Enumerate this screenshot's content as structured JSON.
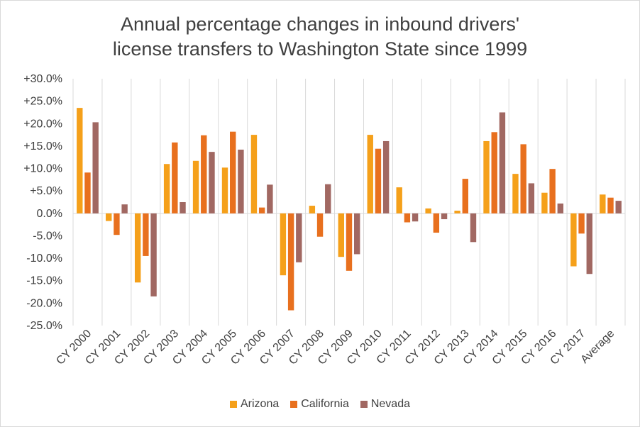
{
  "chart_data": {
    "type": "bar",
    "title_line1": "Annual percentage changes in inbound drivers'",
    "title_line2": "license transfers to Washington State since 1999",
    "xlabel": "",
    "ylabel": "",
    "ylim": [
      -25,
      30
    ],
    "ytick_values": [
      30,
      25,
      20,
      15,
      10,
      5,
      0,
      -5,
      -10,
      -15,
      -20,
      -25
    ],
    "ytick_labels": [
      "+30.0%",
      "+25.0%",
      "+20.0%",
      "+15.0%",
      "+10.0%",
      "+5.0%",
      "0.0%",
      "-5.0%",
      "-10.0%",
      "-15.0%",
      "-20.0%",
      "-25.0%"
    ],
    "grid": "vertical",
    "legend_position": "bottom",
    "categories": [
      "CY 2000",
      "CY 2001",
      "CY 2002",
      "CY 2003",
      "CY 2004",
      "CY 2005",
      "CY 2006",
      "CY 2007",
      "CY 2008",
      "CY 2009",
      "CY 2010",
      "CY 2011",
      "CY 2012",
      "CY 2013",
      "CY 2014",
      "CY 2015",
      "CY 2016",
      "CY 2017",
      "Average"
    ],
    "series": [
      {
        "name": "Arizona",
        "color": "#F5A01A",
        "values": [
          23.5,
          -1.7,
          -15.4,
          11.0,
          11.7,
          10.2,
          17.5,
          -13.8,
          1.7,
          -9.7,
          17.5,
          5.8,
          1.1,
          0.6,
          16.1,
          8.8,
          4.6,
          -11.8,
          4.2
        ]
      },
      {
        "name": "California",
        "color": "#E8701E",
        "values": [
          9.1,
          -4.8,
          -9.5,
          15.8,
          17.4,
          18.2,
          1.3,
          -21.6,
          -5.2,
          -12.8,
          14.4,
          -2.0,
          -4.3,
          7.7,
          18.1,
          15.4,
          9.9,
          -4.5,
          3.5
        ]
      },
      {
        "name": "Nevada",
        "color": "#A16862",
        "values": [
          20.3,
          2.0,
          -18.5,
          2.5,
          13.7,
          14.2,
          6.4,
          -10.9,
          6.5,
          -9.1,
          16.1,
          -1.8,
          -1.3,
          -6.4,
          22.5,
          6.7,
          2.2,
          -13.5,
          2.8
        ]
      }
    ]
  }
}
